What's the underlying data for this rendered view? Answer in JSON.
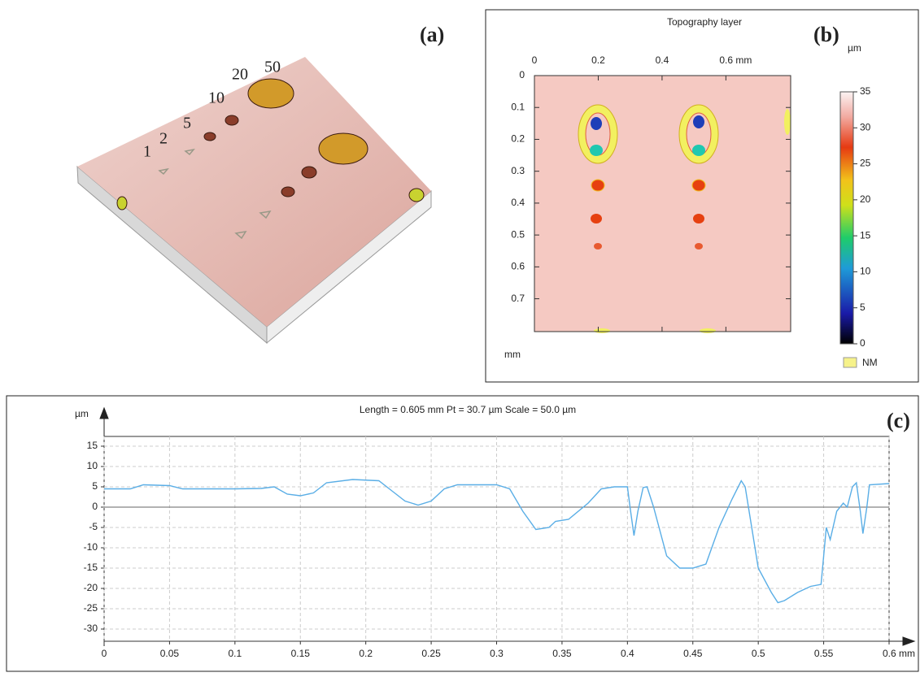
{
  "panel_a": {
    "label": "(a)",
    "indent_labels": [
      "1",
      "2",
      "5",
      "10",
      "20",
      "50"
    ]
  },
  "chart_data": [
    {
      "type": "image",
      "title": "Topography layer",
      "panel_label": "(b)",
      "xlim": [
        0,
        0.803
      ],
      "xticks": [
        0,
        0.2,
        0.4,
        {
          "value": 0.6,
          "label": "0.6 mm"
        }
      ],
      "ylim": [
        0,
        0.803
      ],
      "yticks": [
        0,
        0.1,
        0.2,
        0.3,
        0.4,
        0.5,
        0.6,
        0.7
      ],
      "y_unit": "mm",
      "colorbar": {
        "label": "µm",
        "lim": [
          0,
          35
        ],
        "ticks": [
          0,
          5,
          10,
          15,
          20,
          25,
          30,
          35
        ],
        "legend": "NM"
      }
    },
    {
      "type": "line",
      "title": "Length = 0.605 mm  Pt = 30.7 µm  Scale = 50.0 µm",
      "panel_label": "(c)",
      "y_label": "µm",
      "color": "#5aaee6",
      "grid": true,
      "xlim": [
        0,
        0.6
      ],
      "xticks": [
        0,
        0.05,
        0.1,
        0.15,
        0.2,
        0.25,
        0.3,
        0.35,
        0.4,
        0.45,
        0.5,
        0.55,
        {
          "value": 0.6,
          "label": "0.6 mm"
        }
      ],
      "ylim": [
        -33,
        17.4
      ],
      "yticks": [
        15,
        10,
        5,
        0,
        -5,
        -10,
        -15,
        -20,
        -25,
        -30
      ],
      "x": [
        0,
        0.02,
        0.03,
        0.05,
        0.06,
        0.1,
        0.12,
        0.13,
        0.14,
        0.15,
        0.16,
        0.17,
        0.19,
        0.21,
        0.22,
        0.23,
        0.24,
        0.25,
        0.26,
        0.27,
        0.3,
        0.31,
        0.32,
        0.33,
        0.34,
        0.345,
        0.355,
        0.37,
        0.38,
        0.39,
        0.4,
        0.402,
        0.405,
        0.408,
        0.412,
        0.415,
        0.42,
        0.43,
        0.44,
        0.45,
        0.46,
        0.47,
        0.48,
        0.487,
        0.49,
        0.495,
        0.5,
        0.51,
        0.515,
        0.52,
        0.53,
        0.54,
        0.548,
        0.552,
        0.555,
        0.56,
        0.565,
        0.568,
        0.572,
        0.575,
        0.578,
        0.58,
        0.583,
        0.585,
        0.6
      ],
      "values": [
        4.5,
        4.5,
        5.5,
        5.3,
        4.5,
        4.5,
        4.6,
        5,
        3.2,
        2.8,
        3.5,
        6,
        6.8,
        6.5,
        4,
        1.5,
        0.5,
        1.5,
        4.5,
        5.5,
        5.5,
        4.5,
        -1,
        -5.5,
        -5,
        -3.5,
        -3,
        1,
        4.5,
        5,
        5,
        0,
        -7,
        -1,
        4.8,
        5,
        0,
        -12,
        -15,
        -15,
        -14,
        -5,
        2,
        6.5,
        5,
        -5,
        -15,
        -21,
        -23.5,
        -23,
        -21,
        -19.5,
        -19,
        -5,
        -8,
        -1,
        1,
        0,
        5,
        6,
        -1,
        -6.5,
        0,
        5.5,
        5.8
      ]
    }
  ]
}
